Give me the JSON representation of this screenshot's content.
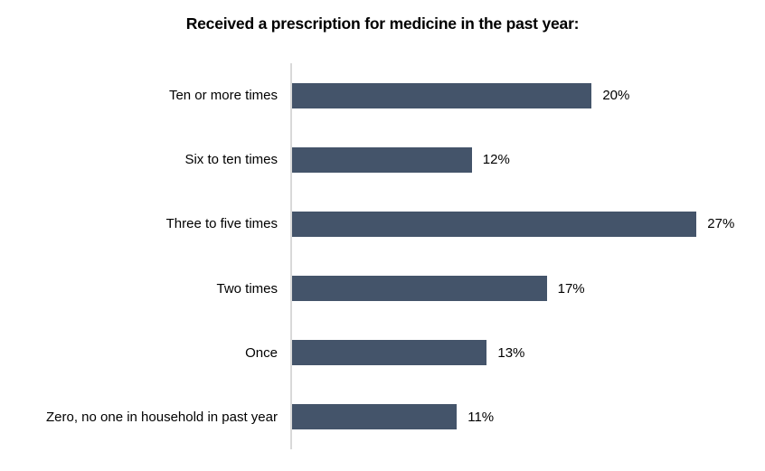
{
  "chart_data": {
    "type": "bar",
    "orientation": "horizontal",
    "title": "Received a prescription for medicine in the past year:",
    "categories": [
      "Ten or more times",
      "Six to ten times",
      "Three to five times",
      "Two times",
      "Once",
      "Zero, no one in household in past year"
    ],
    "values": [
      20,
      12,
      27,
      17,
      13,
      11
    ],
    "value_labels": [
      "20%",
      "12%",
      "27%",
      "17%",
      "13%",
      "11%"
    ],
    "xlabel": "",
    "ylabel": "",
    "xlim": [
      0,
      30
    ],
    "grid": false,
    "legend": false,
    "data_labels_position": "outside-end",
    "bar_color": "#44546a",
    "axis_line_color": "#d9d9d9",
    "title_color": "#000000",
    "label_color": "#000000"
  }
}
